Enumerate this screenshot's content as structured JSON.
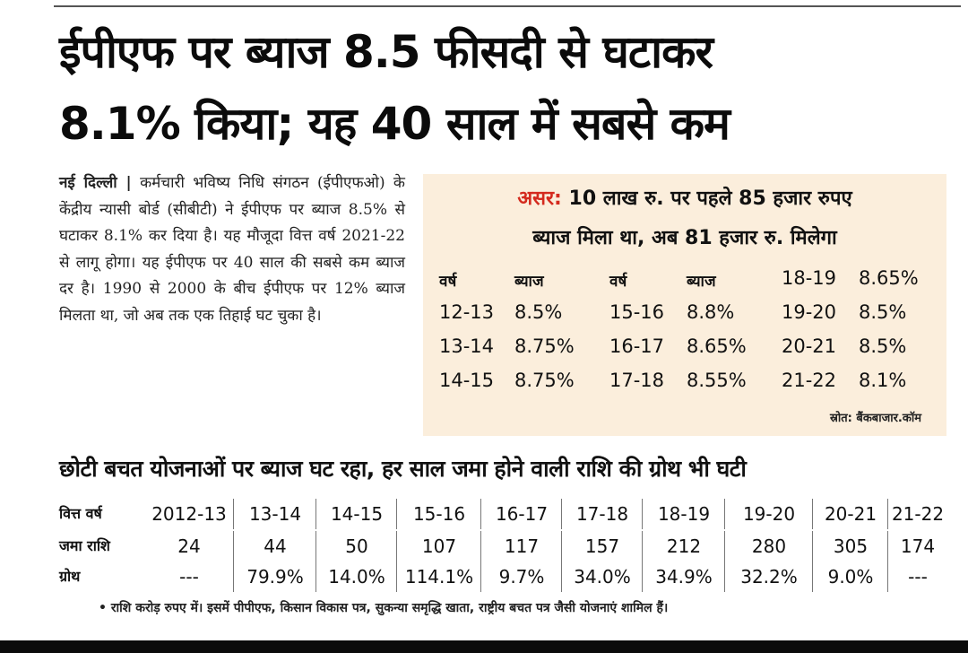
{
  "headline": {
    "line1": "ईपीएफ पर ब्याज 8.5 फीसदी से घटाकर",
    "line2": "8.1% किया; यह 40 साल में सबसे कम"
  },
  "body": {
    "dateline": "नई दिल्ली |",
    "text": "कर्मचारी भविष्य निधि संगठन (ईपीएफओ) के केंद्रीय न्यासी बोर्ड (सीबीटी) ने ईपीएफ पर ब्याज 8.5% से घटाकर 8.1% कर दिया है। यह मौजूदा वित्त वर्ष 2021-22 से लागू होगा। यह ईपीएफ पर 40 साल की सबसे कम ब्याज दर है। 1990 से 2000 के बीच ईपीएफ पर 12% ब्याज मिलता था, जो अब तक एक तिहाई घट चुका है।"
  },
  "chart_data": [
    {
      "type": "table",
      "title_tag": "असर:",
      "title_line1": "10 लाख रु. पर पहले 85 हजार रुपए",
      "title_line2": "ब्याज मिला था, अब 81 हजार रु. मिलेगा",
      "header": [
        "वर्ष",
        "ब्याज",
        "वर्ष",
        "ब्याज"
      ],
      "rows": [
        {
          "year": "12-13",
          "rate": "8.5%"
        },
        {
          "year": "13-14",
          "rate": "8.75%"
        },
        {
          "year": "14-15",
          "rate": "8.75%"
        },
        {
          "year": "15-16",
          "rate": "8.8%"
        },
        {
          "year": "16-17",
          "rate": "8.65%"
        },
        {
          "year": "17-18",
          "rate": "8.55%"
        },
        {
          "year": "18-19",
          "rate": "8.65%"
        },
        {
          "year": "19-20",
          "rate": "8.5%"
        },
        {
          "year": "20-21",
          "rate": "8.5%"
        },
        {
          "year": "21-22",
          "rate": "8.1%"
        }
      ],
      "source": "स्रोत: बैंकबाजार.कॉम"
    },
    {
      "type": "table",
      "title": "छोटी बचत योजनाओं पर ब्याज घट रहा, हर साल जमा होने वाली राशि की ग्रोथ भी घटी",
      "labels": {
        "year": "वित्त वर्ष",
        "amount": "जमा राशि",
        "growth": "ग्रोथ"
      },
      "years": [
        "2012-13",
        "13-14",
        "14-15",
        "15-16",
        "16-17",
        "17-18",
        "18-19",
        "19-20",
        "20-21",
        "21-22"
      ],
      "amounts": [
        "24",
        "44",
        "50",
        "107",
        "117",
        "157",
        "212",
        "280",
        "305",
        "174"
      ],
      "growth": [
        "---",
        "79.9%",
        "14.0%",
        "114.1%",
        "9.7%",
        "34.0%",
        "34.9%",
        "32.2%",
        "9.0%",
        "---"
      ],
      "footnote": "• राशि करोड़ रुपए में। इसमें पीपीएफ, किसान विकास पत्र, सुकन्या समृद्धि खाता, राष्ट्रीय बचत पत्र जैसी योजनाएं शामिल हैं।"
    }
  ],
  "colors": {
    "accent": "#d42a1e",
    "box_bg": "#fbeedc"
  }
}
